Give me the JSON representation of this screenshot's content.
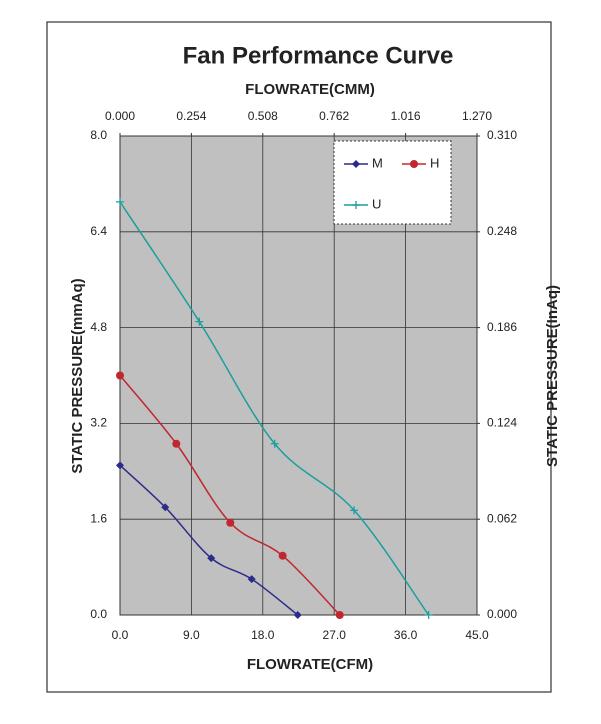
{
  "chart_data": {
    "type": "line",
    "title": "Fan Performance Curve",
    "x2_label": "FLOWRATE(CMM)",
    "x_label": "FLOWRATE(CFM)",
    "y_label": "STATIC PRESSURE(mmAq)",
    "y2_label": "STATIC PRESSURE(InAq)",
    "xlim": [
      0,
      45
    ],
    "xticks": [
      {
        "value": 0,
        "label": "0.0"
      },
      {
        "value": 9,
        "label": "9.0"
      },
      {
        "value": 18,
        "label": "18.0"
      },
      {
        "value": 27,
        "label": "27.0"
      },
      {
        "value": 36,
        "label": "36.0"
      },
      {
        "value": 45,
        "label": "45.0"
      }
    ],
    "x2lim": [
      0,
      1.27
    ],
    "x2ticks": [
      {
        "value": 0,
        "label": "0.000"
      },
      0.254,
      0.508,
      0.762,
      1.016,
      {
        "value": 1.27,
        "label": "1.270"
      }
    ],
    "ylim": [
      0,
      8
    ],
    "yticks": [
      {
        "value": 0,
        "label": "0.0"
      },
      1.6,
      3.2,
      4.8,
      6.4,
      {
        "value": 8,
        "label": "8.0"
      }
    ],
    "y2lim": [
      0,
      0.31
    ],
    "y2ticks": [
      {
        "value": 0,
        "label": "0.000"
      },
      0.062,
      0.124,
      0.186,
      0.248,
      {
        "value": 0.31,
        "label": "0.310"
      }
    ],
    "grid": true,
    "legend": "upper right",
    "series": [
      {
        "name": "M",
        "color": "#2b2b8c",
        "marker": "diamond",
        "x": [
          0,
          5.7,
          11.5,
          16.6,
          22.4
        ],
        "values": [
          2.5,
          1.8,
          0.95,
          0.6,
          0
        ]
      },
      {
        "name": "H",
        "color": "#c0282e",
        "marker": "circle",
        "x": [
          0,
          7.1,
          13.9,
          20.5,
          27.7
        ],
        "values": [
          4.0,
          2.86,
          1.54,
          0.99,
          0
        ]
      },
      {
        "name": "U",
        "color": "#1a9e9e",
        "marker": "plus",
        "x": [
          0,
          10.0,
          19.5,
          29.5,
          38.9
        ],
        "values": [
          6.9,
          4.9,
          2.86,
          1.75,
          0
        ]
      }
    ]
  }
}
